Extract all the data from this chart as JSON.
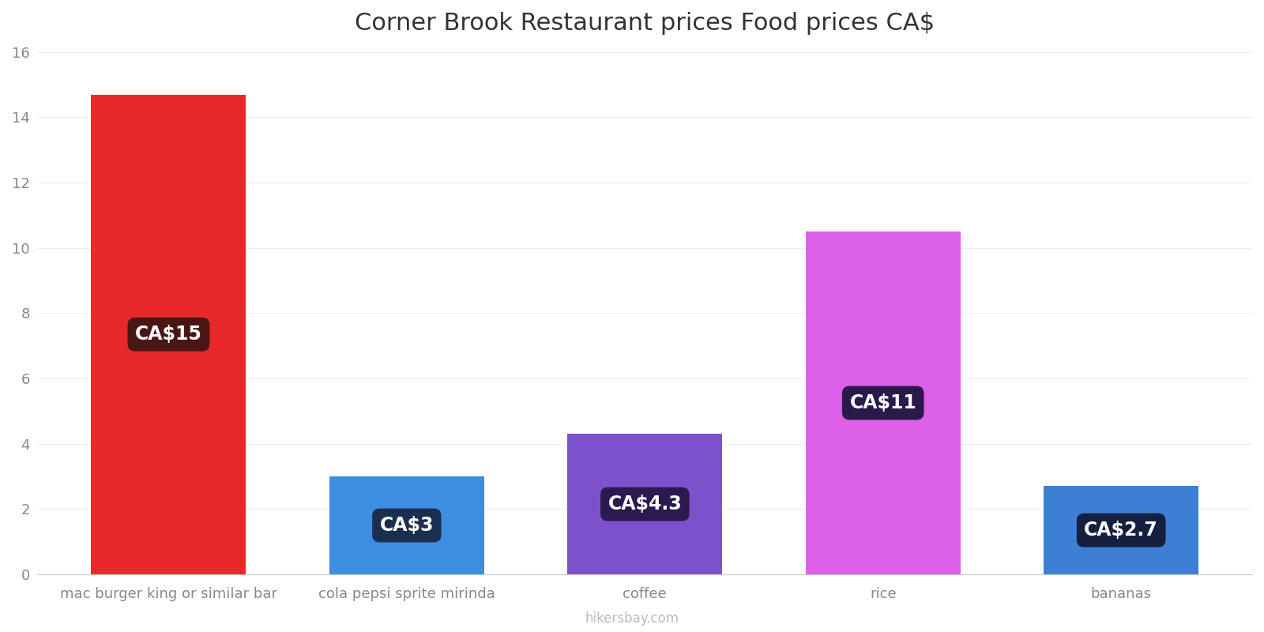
{
  "title": "Corner Brook Restaurant prices Food prices CA$",
  "categories": [
    "mac burger king or similar bar",
    "cola pepsi sprite mirinda",
    "coffee",
    "rice",
    "bananas"
  ],
  "values": [
    14.7,
    3.0,
    4.3,
    10.5,
    2.7
  ],
  "labels": [
    "CA$15",
    "CA$3",
    "CA$4.3",
    "CA$11",
    "CA$2.7"
  ],
  "bar_colors": [
    "#e8292a",
    "#3d8de0",
    "#7b52cc",
    "#dd60e8",
    "#3d7fd4"
  ],
  "label_bg_colors": [
    "#4a1515",
    "#1a2f50",
    "#2a1a50",
    "#2a1a4a",
    "#152040"
  ],
  "ylim": [
    0,
    16
  ],
  "yticks": [
    0,
    2,
    4,
    6,
    8,
    10,
    12,
    14,
    16
  ],
  "title_fontsize": 22,
  "tick_fontsize": 13,
  "label_fontsize": 17,
  "watermark": "hikersbay.com",
  "background_color": "#ffffff",
  "grid_color": "#eeeeee"
}
